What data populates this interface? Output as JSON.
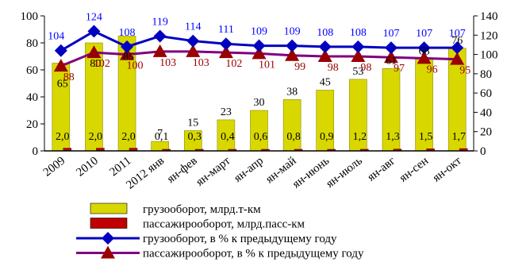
{
  "chart_data": {
    "type": "bar",
    "categories": [
      "2009",
      "2010",
      "2011",
      "2012 янв",
      "ян-фев",
      "ян-март",
      "ян-апр",
      "ян-май",
      "ян-июнь",
      "ян-июль",
      "ян-авг",
      "ян-сен",
      "ян-окт"
    ],
    "y_left": {
      "min": 0,
      "max": 100,
      "ticks": [
        "0",
        "20",
        "40",
        "60",
        "80",
        "100"
      ]
    },
    "y_right": {
      "min": 0,
      "max": 140,
      "ticks": [
        "0",
        "20",
        "40",
        "60",
        "80",
        "100",
        "120",
        "140"
      ]
    },
    "grid": false,
    "legend_position": "bottom",
    "series": [
      {
        "name": "грузооборот, млрд.т-км",
        "type": "bar",
        "axis": "left",
        "color": "#d8d800",
        "values": [
          65,
          80,
          85,
          7,
          15,
          23,
          30,
          38,
          45,
          53,
          61,
          68,
          76
        ],
        "labels": [
          "65",
          "80",
          "85",
          "7",
          "15",
          "23",
          "30",
          "38",
          "45",
          "53",
          "61",
          "68",
          "76"
        ]
      },
      {
        "name": "пассажирооборот, млрд.пасс-км",
        "type": "bar",
        "axis": "left",
        "color": "#c00000",
        "values": [
          2.0,
          2.0,
          2.0,
          0.1,
          0.3,
          0.4,
          0.6,
          0.8,
          0.9,
          1.2,
          1.3,
          1.5,
          1.7
        ],
        "labels": [
          "2,0",
          "2,0",
          "2,0",
          "0,1",
          "0,3",
          "0,4",
          "0,6",
          "0,8",
          "0,9",
          "1,2",
          "1,3",
          "1,5",
          "1,7"
        ]
      },
      {
        "name": "грузооборот, в % к предыдущему году",
        "type": "line",
        "axis": "right",
        "marker": "diamond",
        "color": "#0000c0",
        "label_color": "#0000ff",
        "values": [
          104,
          124,
          108,
          119,
          114,
          111,
          109,
          109,
          108,
          108,
          107,
          107,
          107
        ],
        "labels": [
          "104",
          "124",
          "108",
          "119",
          "114",
          "111",
          "109",
          "109",
          "108",
          "108",
          "107",
          "107",
          "107"
        ]
      },
      {
        "name": "пассажирооборот, в % к предыдущему году",
        "type": "line",
        "axis": "right",
        "marker": "triangle",
        "line_color": "#800080",
        "marker_color": "#990000",
        "label_color": "#990000",
        "values": [
          88,
          102,
          100,
          103,
          103,
          102,
          101,
          99,
          98,
          98,
          97,
          96,
          95
        ],
        "labels": [
          "88",
          "102",
          "100",
          "103",
          "103",
          "102",
          "101",
          "99",
          "98",
          "98",
          "97",
          "96",
          "95"
        ]
      }
    ]
  }
}
